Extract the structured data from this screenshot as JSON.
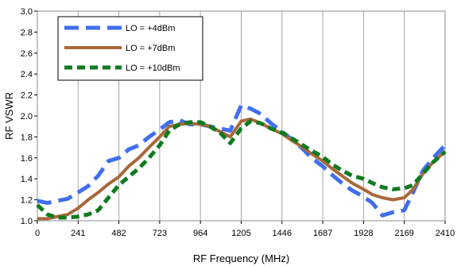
{
  "chart_data": {
    "type": "line",
    "xlabel": "RF Frequency (MHz)",
    "ylabel": "RF VSWR",
    "xlim": [
      0,
      2410
    ],
    "ylim": [
      1.0,
      3.0
    ],
    "xticks": [
      0,
      241,
      482,
      723,
      964,
      1205,
      1446,
      1687,
      1928,
      2169,
      2410
    ],
    "yticks": [
      1.0,
      1.2,
      1.4,
      1.6,
      1.8,
      2.0,
      2.2,
      2.4,
      2.6,
      2.8,
      3.0
    ],
    "grid": "vertical",
    "legend_position": "top-left",
    "series": [
      {
        "name": "LO = +4dBm",
        "color": "#3f6fef",
        "style": "long-dash",
        "x": [
          0,
          60,
          120,
          180,
          241,
          300,
          360,
          420,
          482,
          540,
          600,
          660,
          723,
          780,
          840,
          900,
          964,
          1020,
          1080,
          1140,
          1205,
          1260,
          1320,
          1380,
          1446,
          1500,
          1560,
          1620,
          1687,
          1740,
          1800,
          1860,
          1928,
          1980,
          2040,
          2100,
          2169,
          2220,
          2280,
          2340,
          2410
        ],
        "values": [
          1.19,
          1.17,
          1.19,
          1.21,
          1.27,
          1.33,
          1.43,
          1.57,
          1.6,
          1.68,
          1.72,
          1.8,
          1.87,
          1.94,
          1.96,
          1.92,
          1.92,
          1.9,
          1.88,
          1.86,
          2.1,
          2.07,
          2.02,
          1.93,
          1.85,
          1.78,
          1.7,
          1.6,
          1.52,
          1.44,
          1.36,
          1.29,
          1.23,
          1.17,
          1.05,
          1.08,
          1.1,
          1.27,
          1.48,
          1.6,
          1.72
        ]
      },
      {
        "name": "LO = +7dBm",
        "color": "#a8683a",
        "style": "solid",
        "x": [
          0,
          60,
          120,
          180,
          241,
          300,
          360,
          420,
          482,
          540,
          600,
          660,
          723,
          780,
          840,
          900,
          964,
          1020,
          1080,
          1140,
          1205,
          1260,
          1320,
          1380,
          1446,
          1500,
          1560,
          1620,
          1687,
          1740,
          1800,
          1860,
          1928,
          1980,
          2040,
          2100,
          2169,
          2220,
          2280,
          2340,
          2410
        ],
        "values": [
          1.02,
          1.02,
          1.04,
          1.06,
          1.12,
          1.2,
          1.27,
          1.35,
          1.42,
          1.52,
          1.6,
          1.7,
          1.8,
          1.9,
          1.92,
          1.93,
          1.92,
          1.9,
          1.85,
          1.8,
          1.95,
          1.97,
          1.93,
          1.88,
          1.83,
          1.77,
          1.71,
          1.64,
          1.57,
          1.5,
          1.43,
          1.36,
          1.3,
          1.25,
          1.22,
          1.2,
          1.22,
          1.3,
          1.45,
          1.56,
          1.66
        ]
      },
      {
        "name": "LO = +10dBm",
        "color": "#0e7a1f",
        "style": "dash",
        "x": [
          0,
          60,
          120,
          180,
          241,
          300,
          360,
          420,
          482,
          540,
          600,
          660,
          723,
          780,
          840,
          900,
          964,
          1020,
          1080,
          1140,
          1205,
          1260,
          1320,
          1380,
          1446,
          1500,
          1560,
          1620,
          1687,
          1740,
          1800,
          1860,
          1928,
          1980,
          2040,
          2100,
          2169,
          2220,
          2280,
          2340,
          2410
        ],
        "values": [
          1.15,
          1.06,
          1.03,
          1.03,
          1.04,
          1.06,
          1.1,
          1.22,
          1.34,
          1.42,
          1.5,
          1.6,
          1.72,
          1.86,
          1.92,
          1.94,
          1.94,
          1.9,
          1.84,
          1.74,
          1.88,
          1.95,
          1.93,
          1.88,
          1.84,
          1.79,
          1.73,
          1.67,
          1.61,
          1.54,
          1.48,
          1.43,
          1.4,
          1.36,
          1.32,
          1.3,
          1.31,
          1.34,
          1.45,
          1.56,
          1.66
        ]
      }
    ]
  }
}
